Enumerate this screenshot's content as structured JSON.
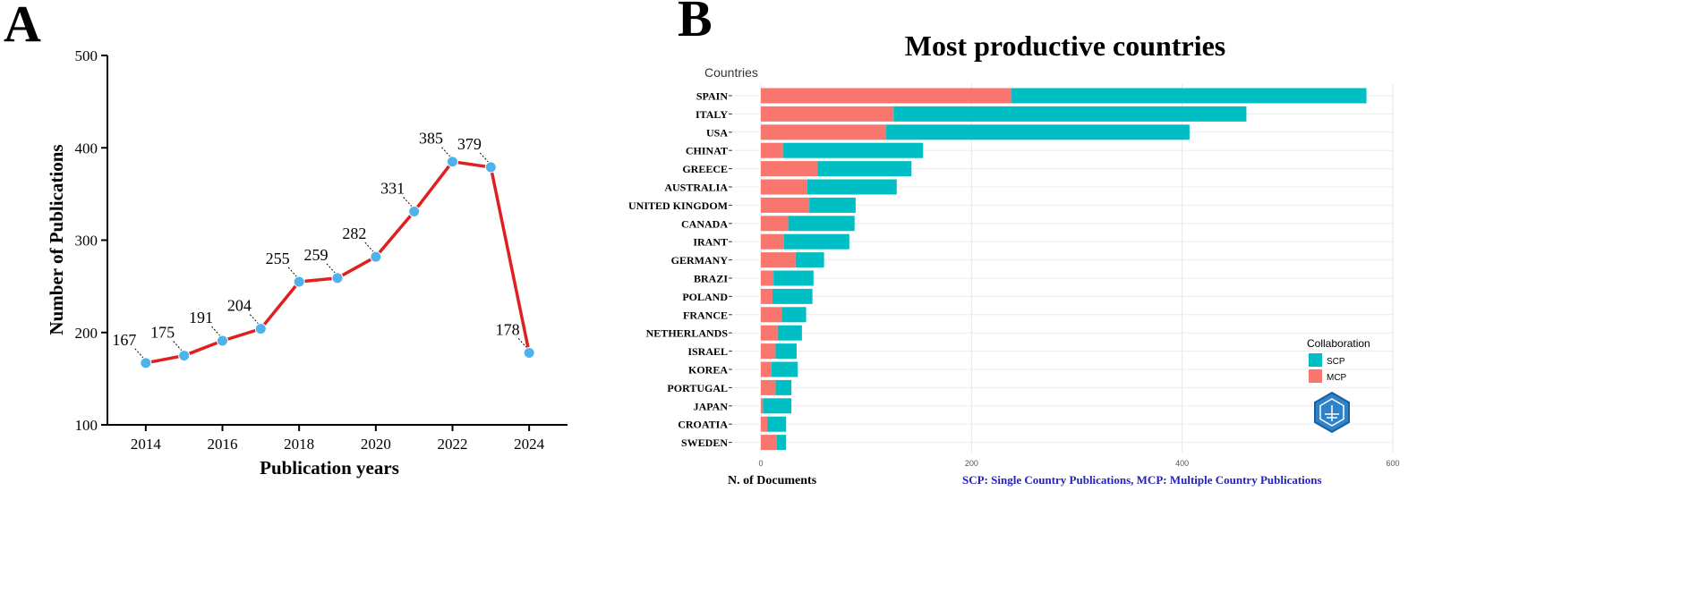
{
  "panels": {
    "a_letter": "A",
    "b_letter": "B"
  },
  "chart_data": [
    {
      "type": "line",
      "panel": "A",
      "title": "",
      "xlabel": "Publication years",
      "ylabel": "Number of Publications",
      "x": [
        2014,
        2015,
        2016,
        2017,
        2018,
        2019,
        2020,
        2021,
        2022,
        2023,
        2024
      ],
      "values": [
        167,
        175,
        191,
        204,
        255,
        259,
        282,
        331,
        385,
        379,
        178
      ],
      "xlim": [
        2013,
        2025
      ],
      "ylim": [
        100,
        500
      ],
      "xticks": [
        2014,
        2016,
        2018,
        2020,
        2022,
        2024
      ],
      "yticks": [
        100,
        200,
        300,
        400,
        500
      ],
      "line_color": "#e02020",
      "marker_color": "#4eb3ea"
    },
    {
      "type": "bar",
      "orientation": "horizontal",
      "stacked": true,
      "panel": "B",
      "title": "Most productive countries",
      "ylabel": "Countries",
      "xlabel": "N. of Documents",
      "caption": "SCP: Single Country Publications, MCP: Multiple Country Publications",
      "categories": [
        "SPAIN",
        "ITALY",
        "USA",
        "CHINAT",
        "GREECE",
        "AUSTRALIA",
        "UNITED KINGDOM",
        "CANADA",
        "IRANT",
        "GERMANY",
        "BRAZI",
        "POLAND",
        "FRANCE",
        "NETHERLANDS",
        "ISRAEL",
        "KOREA",
        "PORTUGAL",
        "JAPAN",
        "CROATIA",
        "SWEDEN"
      ],
      "series": [
        {
          "name": "MCP",
          "color": "#f8766d",
          "values": [
            238,
            126,
            119,
            21,
            54,
            44,
            46,
            26,
            22,
            33,
            12,
            11,
            20,
            16,
            14,
            10,
            14,
            2,
            6,
            15
          ]
        },
        {
          "name": "SCP",
          "color": "#00bfc4",
          "values": [
            337,
            335,
            288,
            133,
            89,
            85,
            44,
            63,
            62,
            27,
            38,
            38,
            23,
            23,
            20,
            25,
            15,
            27,
            18,
            9
          ]
        }
      ],
      "xlim": [
        0,
        600
      ],
      "xticks": [
        0,
        200,
        400,
        600
      ],
      "legend": {
        "title": "Collaboration",
        "position": "right",
        "items": [
          "SCP",
          "MCP"
        ]
      },
      "grid": true
    }
  ]
}
